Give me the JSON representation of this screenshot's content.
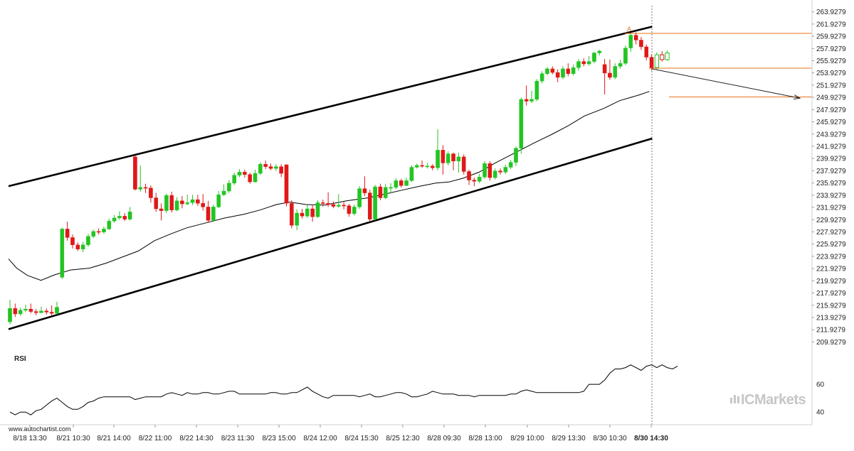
{
  "watermark": {
    "url": "www.autochartist.com",
    "brand": "ICMarkets",
    "brand_prefix": "IC",
    "brand_suffix": "Markets"
  },
  "chart_data": {
    "type": "candlestick",
    "title": "",
    "xlabel": "",
    "ylabel": "",
    "ylim": [
      208.9279,
      264.9279
    ],
    "y_ticks": [
      "263.9279",
      "261.9279",
      "259.9279",
      "257.9279",
      "255.9279",
      "253.9279",
      "251.9279",
      "249.9279",
      "247.9279",
      "245.9279",
      "243.9279",
      "241.9279",
      "239.9279",
      "237.9279",
      "235.9279",
      "233.9279",
      "231.9279",
      "229.9279",
      "227.9279",
      "225.9279",
      "223.9279",
      "221.9279",
      "219.9279",
      "217.9279",
      "215.9279",
      "213.9279",
      "211.9279",
      "209.9279"
    ],
    "x_ticks": [
      "8/18 13:30",
      "8/21 10:30",
      "8/21 14:00",
      "8/22 11:00",
      "8/22 14:30",
      "8/23 11:30",
      "8/23 15:00",
      "8/24 12:00",
      "8/24 15:30",
      "8/25 12:30",
      "8/28 09:30",
      "8/28 13:00",
      "8/29 10:00",
      "8/29 13:30",
      "8/30 10:30",
      "8/30 14:30"
    ],
    "highlight_x_tick": "8/30 14:30",
    "bull_color": "#22c522",
    "bear_color": "#e01818",
    "candles": [
      [
        213.2,
        215.4,
        216.8,
        212.8
      ],
      [
        215.4,
        214.5,
        216.2,
        214.0
      ],
      [
        214.5,
        215.1,
        215.5,
        214.2
      ],
      [
        215.1,
        215.3,
        216.0,
        214.8
      ],
      [
        215.3,
        214.9,
        216.2,
        214.6
      ],
      [
        214.9,
        214.7,
        215.3,
        214.3
      ],
      [
        214.7,
        215.0,
        215.7,
        214.6
      ],
      [
        215.0,
        214.8,
        215.4,
        214.4
      ],
      [
        214.8,
        214.6,
        215.9,
        214.2
      ],
      [
        214.6,
        215.6,
        216.5,
        214.4
      ],
      [
        220.5,
        228.4,
        228.6,
        220.2
      ],
      [
        228.4,
        227.0,
        229.6,
        226.5
      ],
      [
        227.0,
        225.8,
        227.5,
        225.2
      ],
      [
        225.8,
        225.1,
        226.2,
        224.8
      ],
      [
        225.1,
        225.8,
        226.3,
        224.6
      ],
      [
        225.8,
        227.2,
        227.6,
        225.5
      ],
      [
        227.2,
        228.0,
        228.3,
        226.9
      ],
      [
        228.0,
        227.9,
        228.5,
        227.5
      ],
      [
        227.9,
        228.4,
        228.8,
        227.6
      ],
      [
        228.4,
        229.7,
        230.1,
        228.2
      ],
      [
        229.7,
        230.2,
        230.7,
        229.4
      ],
      [
        230.2,
        230.5,
        231.3,
        229.9
      ],
      [
        230.5,
        230.0,
        231.0,
        229.7
      ],
      [
        230.0,
        231.2,
        232.0,
        229.8
      ],
      [
        240.2,
        234.9,
        240.4,
        234.7
      ],
      [
        234.9,
        235.2,
        238.8,
        234.5
      ],
      [
        235.2,
        235.1,
        235.8,
        234.3
      ],
      [
        235.1,
        233.5,
        235.5,
        232.7
      ],
      [
        233.5,
        231.7,
        234.3,
        231.2
      ],
      [
        231.7,
        231.4,
        232.6,
        229.8
      ],
      [
        231.4,
        233.9,
        234.2,
        231.0
      ],
      [
        233.9,
        231.5,
        234.5,
        231.1
      ],
      [
        231.5,
        233.0,
        233.6,
        231.3
      ],
      [
        233.0,
        232.5,
        233.8,
        231.8
      ],
      [
        232.5,
        232.7,
        234.0,
        232.3
      ],
      [
        232.7,
        233.2,
        234.0,
        232.3
      ],
      [
        233.2,
        232.6,
        234.0,
        232.2
      ],
      [
        232.6,
        232.0,
        234.1,
        231.4
      ],
      [
        232.0,
        229.8,
        233.0,
        229.4
      ],
      [
        229.8,
        232.0,
        232.4,
        229.6
      ],
      [
        232.0,
        234.0,
        234.6,
        231.8
      ],
      [
        234.0,
        234.6,
        235.7,
        233.8
      ],
      [
        234.6,
        235.9,
        236.4,
        234.3
      ],
      [
        235.9,
        237.2,
        237.6,
        235.6
      ],
      [
        237.2,
        237.7,
        238.2,
        236.9
      ],
      [
        237.7,
        237.3,
        238.1,
        236.8
      ],
      [
        237.3,
        236.1,
        237.6,
        235.8
      ],
      [
        236.1,
        237.5,
        238.1,
        236.0
      ],
      [
        237.5,
        239.0,
        239.3,
        237.2
      ],
      [
        239.0,
        238.6,
        239.6,
        238.2
      ],
      [
        238.6,
        238.3,
        239.1,
        238.0
      ],
      [
        238.3,
        238.6,
        239.0,
        237.9
      ],
      [
        238.6,
        237.5,
        239.0,
        236.9
      ],
      [
        238.9,
        232.6,
        239.0,
        232.1
      ],
      [
        232.6,
        229.0,
        233.1,
        228.5
      ],
      [
        229.0,
        231.0,
        231.6,
        228.2
      ],
      [
        231.0,
        230.5,
        231.7,
        230.1
      ],
      [
        230.5,
        231.7,
        232.3,
        230.2
      ],
      [
        231.7,
        230.4,
        232.4,
        229.6
      ],
      [
        230.4,
        232.7,
        233.1,
        230.2
      ],
      [
        232.7,
        232.6,
        233.2,
        232.1
      ],
      [
        232.6,
        232.4,
        234.4,
        232.0
      ],
      [
        232.4,
        232.1,
        232.9,
        231.8
      ],
      [
        232.1,
        232.3,
        234.1,
        231.9
      ],
      [
        232.3,
        232.2,
        232.8,
        231.6
      ],
      [
        232.2,
        230.9,
        232.5,
        230.4
      ],
      [
        230.9,
        232.0,
        232.4,
        230.6
      ],
      [
        232.0,
        235.0,
        235.4,
        231.7
      ],
      [
        235.0,
        234.3,
        237.0,
        233.8
      ],
      [
        234.3,
        230.0,
        234.8,
        229.6
      ],
      [
        230.0,
        235.3,
        235.6,
        229.8
      ],
      [
        235.3,
        233.5,
        235.8,
        233.1
      ],
      [
        233.5,
        235.2,
        235.8,
        233.3
      ],
      [
        235.2,
        235.2,
        235.9,
        234.2
      ],
      [
        235.2,
        236.3,
        236.7,
        234.9
      ],
      [
        236.3,
        235.5,
        236.6,
        235.2
      ],
      [
        235.5,
        236.3,
        236.8,
        235.4
      ],
      [
        236.3,
        238.5,
        238.8,
        236.1
      ],
      [
        238.5,
        238.8,
        239.1,
        238.3
      ],
      [
        238.8,
        238.7,
        239.6,
        238.4
      ],
      [
        238.7,
        238.7,
        239.2,
        238.3
      ],
      [
        238.7,
        238.4,
        239.0,
        238.0
      ],
      [
        238.4,
        241.3,
        244.7,
        238.0
      ],
      [
        241.3,
        239.2,
        242.1,
        237.3
      ],
      [
        239.2,
        240.7,
        241.1,
        238.8
      ],
      [
        240.7,
        239.5,
        240.9,
        238.0
      ],
      [
        239.5,
        240.2,
        240.9,
        237.6
      ],
      [
        240.2,
        237.8,
        240.6,
        237.3
      ],
      [
        237.8,
        236.4,
        238.1,
        235.6
      ],
      [
        236.4,
        236.2,
        236.8,
        235.4
      ],
      [
        236.2,
        236.9,
        237.4,
        235.9
      ],
      [
        236.9,
        239.1,
        239.5,
        236.6
      ],
      [
        239.1,
        236.8,
        239.5,
        236.3
      ],
      [
        236.8,
        237.9,
        238.3,
        236.5
      ],
      [
        237.9,
        237.7,
        238.3,
        237.3
      ],
      [
        237.7,
        238.5,
        238.9,
        237.4
      ],
      [
        238.5,
        239.3,
        239.7,
        238.2
      ],
      [
        239.3,
        241.6,
        241.9,
        238.7
      ],
      [
        241.6,
        249.6,
        249.9,
        240.7
      ],
      [
        249.6,
        249.3,
        251.9,
        248.6
      ],
      [
        249.3,
        249.6,
        251.0,
        249.0
      ],
      [
        249.6,
        252.6,
        252.9,
        249.3
      ],
      [
        252.6,
        253.8,
        254.2,
        252.2
      ],
      [
        253.8,
        254.6,
        254.9,
        253.5
      ],
      [
        254.6,
        254.0,
        255.0,
        253.7
      ],
      [
        254.0,
        253.2,
        254.5,
        252.4
      ],
      [
        253.2,
        254.6,
        255.0,
        252.9
      ],
      [
        254.6,
        253.8,
        255.5,
        253.4
      ],
      [
        253.8,
        254.8,
        255.3,
        253.5
      ],
      [
        254.8,
        255.8,
        256.2,
        254.3
      ],
      [
        255.8,
        255.4,
        256.3,
        255.0
      ],
      [
        255.4,
        255.8,
        256.7,
        255.1
      ],
      [
        255.8,
        257.2,
        257.4,
        255.5
      ],
      [
        257.2,
        257.5,
        257.7,
        256.8
      ],
      [
        255.3,
        253.9,
        256.2,
        250.4
      ],
      [
        253.9,
        253.2,
        256.1,
        252.8
      ],
      [
        253.2,
        255.0,
        255.5,
        252.9
      ],
      [
        255.0,
        255.5,
        256.1,
        254.6
      ],
      [
        255.5,
        258.0,
        258.4,
        255.2
      ],
      [
        258.0,
        260.1,
        260.5,
        257.4
      ],
      [
        260.1,
        259.3,
        260.6,
        258.6
      ],
      [
        259.3,
        258.2,
        259.8,
        257.7
      ],
      [
        258.2,
        256.5,
        258.6,
        256.0
      ],
      [
        256.5,
        254.8,
        256.9,
        254.3
      ],
      [
        254.8,
        256.9,
        257.3,
        254.5
      ],
      [
        256.9,
        256.1,
        257.5,
        255.8
      ],
      [
        256.1,
        257.2,
        257.6,
        255.9
      ]
    ],
    "moving_average": [
      [
        0,
        223.5
      ],
      [
        6,
        222.0
      ],
      [
        14,
        220.8
      ],
      [
        24,
        220.0
      ],
      [
        34,
        220.9
      ],
      [
        46,
        221.7
      ],
      [
        60,
        222.0
      ],
      [
        72,
        222.8
      ],
      [
        84,
        223.8
      ],
      [
        96,
        224.8
      ],
      [
        108,
        226.5
      ],
      [
        120,
        227.6
      ],
      [
        132,
        228.6
      ],
      [
        146,
        229.4
      ],
      [
        160,
        230.2
      ],
      [
        174,
        230.8
      ],
      [
        186,
        231.5
      ],
      [
        198,
        232.4
      ],
      [
        208,
        232.8
      ],
      [
        220,
        232.4
      ],
      [
        234,
        232.3
      ],
      [
        250,
        233.0
      ],
      [
        266,
        233.5
      ],
      [
        280,
        234.2
      ],
      [
        292,
        234.8
      ],
      [
        304,
        235.4
      ],
      [
        316,
        235.9
      ],
      [
        326,
        236.1
      ],
      [
        336,
        236.7
      ],
      [
        348,
        237.7
      ],
      [
        360,
        239.2
      ],
      [
        374,
        240.8
      ],
      [
        388,
        242.4
      ],
      [
        402,
        243.9
      ],
      [
        414,
        245.3
      ],
      [
        426,
        246.9
      ],
      [
        440,
        248.1
      ],
      [
        452,
        249.4
      ],
      [
        466,
        250.3
      ],
      [
        474,
        250.9
      ]
    ],
    "channel_upper": [
      [
        0,
        235.4
      ],
      [
        476,
        261.5
      ]
    ],
    "channel_lower": [
      [
        0,
        212.0
      ],
      [
        476,
        243.2
      ]
    ],
    "forecast_arrow": [
      [
        476,
        254.6
      ],
      [
        560,
        249.8
      ]
    ],
    "target_levels": [
      260.4,
      254.7,
      250.0
    ],
    "pattern_marker": "A",
    "rsi": {
      "label": "RSI",
      "ylim": [
        35,
        82
      ],
      "ticks": [
        "60",
        "40"
      ],
      "values": [
        40,
        38,
        40,
        40,
        38,
        41,
        42,
        45,
        48,
        50,
        47,
        44,
        42,
        42,
        44,
        47,
        48,
        50,
        51,
        51,
        51,
        51,
        51,
        51,
        49,
        50,
        51,
        51,
        51,
        51,
        53,
        54,
        53,
        52,
        54,
        53,
        53,
        54,
        54,
        53,
        53,
        54,
        55,
        55,
        53,
        53,
        53,
        53,
        53,
        53,
        54,
        54,
        53,
        53,
        54,
        54,
        56,
        58,
        55,
        53,
        51,
        50,
        52,
        52,
        52,
        52,
        52,
        51,
        52,
        53,
        51,
        51,
        52,
        53,
        54,
        54,
        53,
        51,
        51,
        52,
        53,
        55,
        54,
        53,
        53,
        53,
        52,
        52,
        52,
        51,
        52,
        52,
        52,
        52,
        52,
        52,
        53,
        53,
        55,
        56,
        55,
        54,
        54,
        54,
        54,
        54,
        54,
        54,
        54,
        54,
        55,
        60,
        60,
        60,
        63,
        68,
        71,
        71,
        72,
        74,
        72,
        70,
        73,
        74,
        72,
        74,
        72,
        71,
        73
      ]
    }
  }
}
